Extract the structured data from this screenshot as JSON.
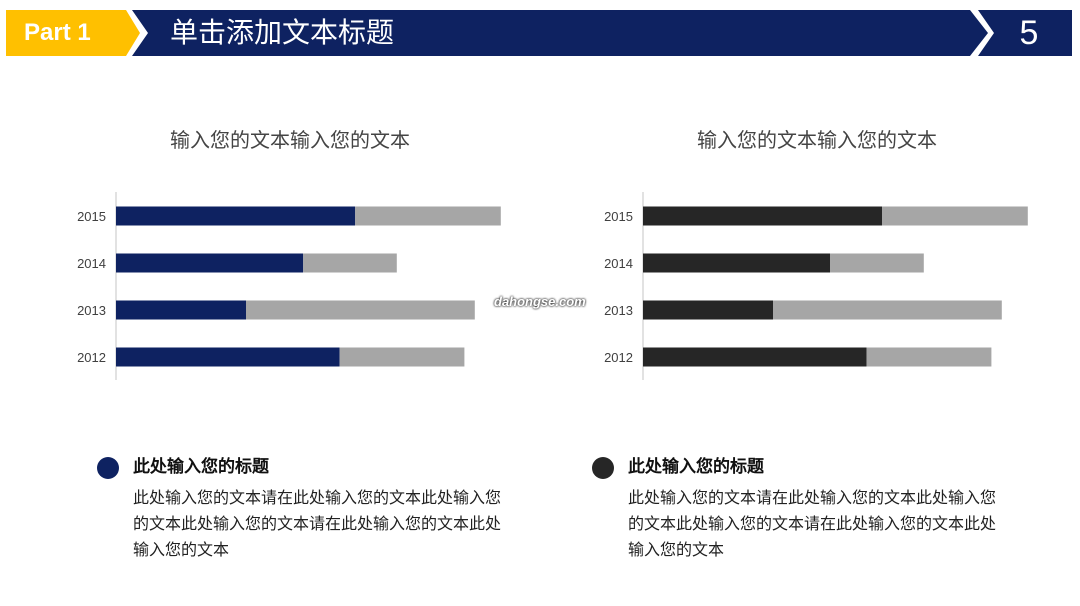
{
  "header": {
    "part_label": "Part 1",
    "title": "单击添加文本标题",
    "page_number": "5",
    "colors": {
      "accent": "#FFC000",
      "primary": "#0E2261"
    }
  },
  "watermark": "dahongse.com",
  "chart_data": [
    {
      "type": "bar",
      "orientation": "horizontal",
      "stacked": true,
      "title": "输入您的文本输入您的文本",
      "categories": [
        "2015",
        "2014",
        "2013",
        "2012"
      ],
      "series": [
        {
          "values": [
            4.6,
            3.6,
            2.5,
            4.3
          ],
          "color": "#0E2261"
        },
        {
          "values": [
            2.8,
            1.8,
            4.4,
            2.4
          ],
          "color": "#A6A6A6"
        }
      ],
      "xlim": [
        0,
        8
      ],
      "grid": false,
      "legend": false
    },
    {
      "type": "bar",
      "orientation": "horizontal",
      "stacked": true,
      "title": "输入您的文本输入您的文本",
      "categories": [
        "2015",
        "2014",
        "2013",
        "2012"
      ],
      "series": [
        {
          "values": [
            4.6,
            3.6,
            2.5,
            4.3
          ],
          "color": "#262626"
        },
        {
          "values": [
            2.8,
            1.8,
            4.4,
            2.4
          ],
          "color": "#A6A6A6"
        }
      ],
      "xlim": [
        0,
        8
      ],
      "grid": false,
      "legend": false
    }
  ],
  "notes": [
    {
      "title": "此处输入您的标题",
      "body": "此处输入您的文本请在此处输入您的文本此处输入您的文本此处输入您的文本请在此处输入您的文本此处输入您的文本",
      "dot_color": "#0E2261"
    },
    {
      "title": "此处输入您的标题",
      "body": "此处输入您的文本请在此处输入您的文本此处输入您的文本此处输入您的文本请在此处输入您的文本此处输入您的文本",
      "dot_color": "#262626"
    }
  ]
}
